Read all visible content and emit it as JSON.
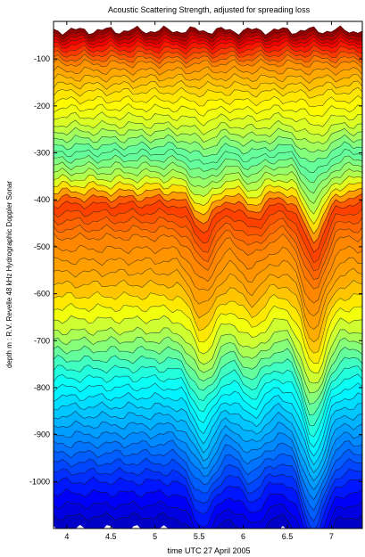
{
  "chart_data": {
    "type": "heatmap",
    "title": "Acoustic Scattering Strength, adjusted for spreading loss",
    "xlabel": "time UTC 27 April 2005",
    "ylabel": "depth m : R.V. Revelle 48 kHz Hydrographic Doppler Sonar",
    "x_ticks": [
      "4",
      "4.5",
      "5",
      "5.5",
      "6",
      "6.5",
      "7"
    ],
    "x_tick_values": [
      4,
      4.5,
      5,
      5.5,
      6,
      6.5,
      7
    ],
    "y_ticks": [
      "-100",
      "-200",
      "-300",
      "-400",
      "-500",
      "-600",
      "-700",
      "-800",
      "-900",
      "-1000"
    ],
    "y_tick_values": [
      -100,
      -200,
      -300,
      -400,
      -500,
      -600,
      -700,
      -800,
      -900,
      -1000
    ],
    "xlim": [
      3.85,
      7.35
    ],
    "ylim": [
      -1100,
      -20
    ],
    "grid": false,
    "colormap": "jet",
    "colormap_stops": [
      "#00008f",
      "#0000ff",
      "#0080ff",
      "#00ffff",
      "#80ff80",
      "#ffff00",
      "#ff8000",
      "#ff0000",
      "#800000"
    ],
    "layers": [
      {
        "depth": -40,
        "level": 1.0
      },
      {
        "depth": -70,
        "level": 0.87
      },
      {
        "depth": -110,
        "level": 0.74
      },
      {
        "depth": -170,
        "level": 0.66
      },
      {
        "depth": -240,
        "level": 0.58
      },
      {
        "depth": -300,
        "level": 0.46
      },
      {
        "depth": -355,
        "level": 0.56
      },
      {
        "depth": -410,
        "level": 0.82
      },
      {
        "depth": -480,
        "level": 0.75
      },
      {
        "depth": -580,
        "level": 0.7
      },
      {
        "depth": -680,
        "level": 0.56
      },
      {
        "depth": -760,
        "level": 0.42
      },
      {
        "depth": -840,
        "level": 0.33
      },
      {
        "depth": -920,
        "level": 0.25
      },
      {
        "depth": -1000,
        "level": 0.16
      },
      {
        "depth": -1100,
        "level": 0.05
      }
    ],
    "depression_features": [
      {
        "time": 5.55,
        "depth_shift": 70
      },
      {
        "time": 6.1,
        "depth_shift": 40
      },
      {
        "time": 6.8,
        "depth_shift": 120
      }
    ]
  }
}
